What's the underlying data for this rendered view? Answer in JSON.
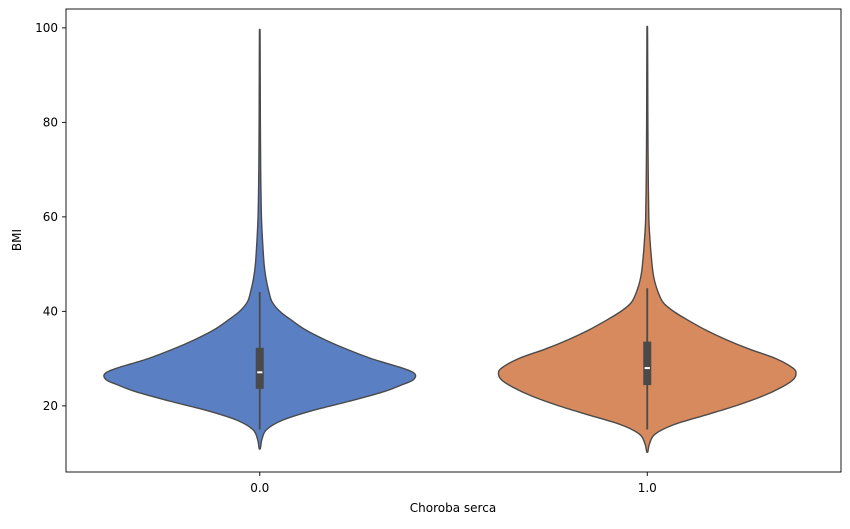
{
  "chart_data": {
    "type": "violin",
    "title": "",
    "xlabel": "Choroba serca",
    "ylabel": "BMI",
    "categories": [
      "0.0",
      "1.0"
    ],
    "ylim": [
      6,
      104
    ],
    "yticks": [
      20,
      40,
      60,
      80,
      100
    ],
    "grid": false,
    "legend": "none",
    "violins": [
      {
        "category": "0.0",
        "color": "#5a7fc3",
        "min": 11.0,
        "q1": 23.6,
        "median": 27.1,
        "q3": 32.3,
        "whisker_low": 15.0,
        "whisker_high": 44.1,
        "max": 99.0,
        "density": [
          [
            11.0,
            0.004
          ],
          [
            13.0,
            0.015
          ],
          [
            15.0,
            0.045
          ],
          [
            17.0,
            0.15
          ],
          [
            19.0,
            0.34
          ],
          [
            21.0,
            0.58
          ],
          [
            23.0,
            0.8
          ],
          [
            24.5,
            0.92
          ],
          [
            25.5,
            0.99
          ],
          [
            26.8,
            1.0
          ],
          [
            28.0,
            0.92
          ],
          [
            30.0,
            0.72
          ],
          [
            32.0,
            0.56
          ],
          [
            34.0,
            0.42
          ],
          [
            36.0,
            0.3
          ],
          [
            38.0,
            0.21
          ],
          [
            40.0,
            0.13
          ],
          [
            42.0,
            0.08
          ],
          [
            44.0,
            0.06
          ],
          [
            47.0,
            0.04
          ],
          [
            50.0,
            0.028
          ],
          [
            55.0,
            0.018
          ],
          [
            60.0,
            0.011
          ],
          [
            65.0,
            0.008
          ],
          [
            70.0,
            0.006
          ],
          [
            80.0,
            0.004
          ],
          [
            90.0,
            0.003
          ],
          [
            99.0,
            0.002
          ]
        ]
      },
      {
        "category": "1.0",
        "color": "#d78a5d",
        "min": 10.3,
        "q1": 24.4,
        "median": 28.0,
        "q3": 33.6,
        "whisker_low": 15.0,
        "whisker_high": 44.9,
        "max": 99.6,
        "density": [
          [
            10.3,
            0.004
          ],
          [
            12.0,
            0.015
          ],
          [
            14.0,
            0.05
          ],
          [
            16.0,
            0.17
          ],
          [
            18.0,
            0.37
          ],
          [
            20.0,
            0.57
          ],
          [
            22.0,
            0.74
          ],
          [
            24.0,
            0.87
          ],
          [
            25.5,
            0.94
          ],
          [
            26.8,
            0.96
          ],
          [
            28.0,
            0.94
          ],
          [
            30.0,
            0.83
          ],
          [
            32.0,
            0.66
          ],
          [
            34.0,
            0.51
          ],
          [
            36.0,
            0.38
          ],
          [
            38.0,
            0.27
          ],
          [
            40.0,
            0.17
          ],
          [
            42.0,
            0.1
          ],
          [
            45.0,
            0.06
          ],
          [
            48.0,
            0.038
          ],
          [
            52.0,
            0.025
          ],
          [
            56.0,
            0.016
          ],
          [
            60.0,
            0.01
          ],
          [
            70.0,
            0.006
          ],
          [
            80.0,
            0.004
          ],
          [
            90.0,
            0.003
          ],
          [
            99.6,
            0.002
          ]
        ]
      }
    ]
  }
}
